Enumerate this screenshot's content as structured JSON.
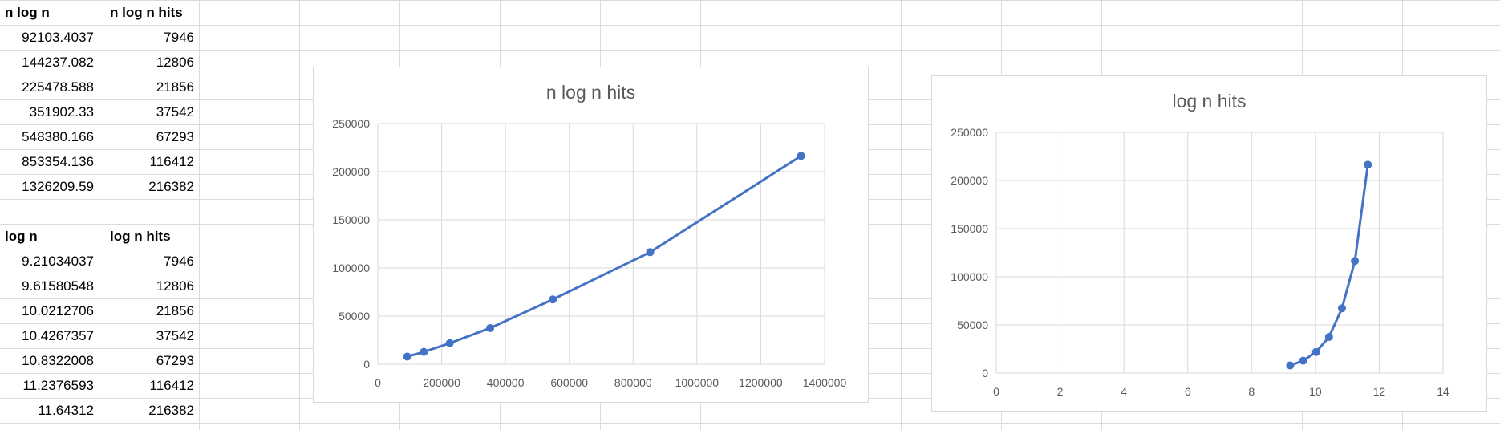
{
  "table1": {
    "headers": [
      "n log n",
      "n log n hits"
    ],
    "rows": [
      [
        "92103.4037",
        "7946"
      ],
      [
        "144237.082",
        "12806"
      ],
      [
        "225478.588",
        "21856"
      ],
      [
        "351902.33",
        "37542"
      ],
      [
        "548380.166",
        "67293"
      ],
      [
        "853354.136",
        "116412"
      ],
      [
        "1326209.59",
        "216382"
      ]
    ]
  },
  "table2": {
    "headers": [
      "log n",
      "log n hits"
    ],
    "rows": [
      [
        "9.21034037",
        "7946"
      ],
      [
        "9.61580548",
        "12806"
      ],
      [
        "10.0212706",
        "21856"
      ],
      [
        "10.4267357",
        "37542"
      ],
      [
        "10.8322008",
        "67293"
      ],
      [
        "11.2376593",
        "116412"
      ],
      [
        "11.64312",
        "216382"
      ]
    ]
  },
  "colors": {
    "series": "#4472c4",
    "gridline": "#d9d9d9",
    "text": "#595959"
  },
  "chart_data": [
    {
      "type": "line",
      "title": "n log n hits",
      "x": [
        92103.4037,
        144237.082,
        225478.588,
        351902.33,
        548380.166,
        853354.136,
        1326209.59
      ],
      "series": [
        {
          "values": [
            7946,
            12806,
            21856,
            37542,
            67293,
            116412,
            216382
          ]
        }
      ],
      "xlim": [
        0,
        1400000
      ],
      "ylim": [
        0,
        250000
      ],
      "xticks": [
        "0",
        "200000",
        "400000",
        "600000",
        "800000",
        "1000000",
        "1200000",
        "1400000"
      ],
      "yticks": [
        "0",
        "50000",
        "100000",
        "150000",
        "200000",
        "250000"
      ],
      "grid": true,
      "markers": true
    },
    {
      "type": "line",
      "title": "log n hits",
      "x": [
        9.21034037,
        9.61580548,
        10.0212706,
        10.4267357,
        10.8322008,
        11.2376593,
        11.64312
      ],
      "series": [
        {
          "values": [
            7946,
            12806,
            21856,
            37542,
            67293,
            116412,
            216382
          ]
        }
      ],
      "xlim": [
        0,
        14
      ],
      "ylim": [
        0,
        250000
      ],
      "xticks": [
        "0",
        "2",
        "4",
        "6",
        "8",
        "10",
        "12",
        "14"
      ],
      "yticks": [
        "0",
        "50000",
        "100000",
        "150000",
        "200000",
        "250000"
      ],
      "grid": true,
      "markers": true
    }
  ]
}
